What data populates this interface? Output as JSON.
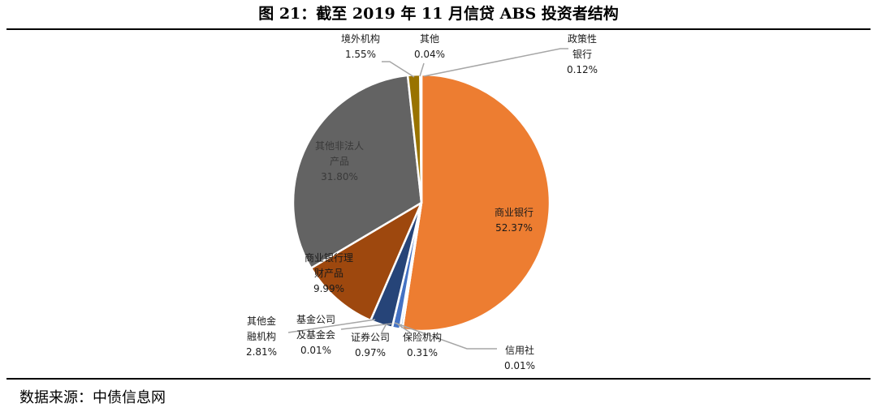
{
  "figure": {
    "title": "图 21：截至 2019 年 11 月信贷 ABS 投资者结构",
    "source": "数据来源：中债信息网"
  },
  "chart_data": {
    "type": "pie",
    "title": "",
    "start_angle_deg": 0,
    "direction": "clockwise",
    "slices": [
      {
        "name": "商业银行",
        "lines": [
          "商业银行"
        ],
        "value": 52.37,
        "value_label": "52.37%",
        "color": "#ED7D31"
      },
      {
        "name": "信用社",
        "lines": [
          "信用社"
        ],
        "value": 0.01,
        "value_label": "0.01%",
        "color": "#FFC000"
      },
      {
        "name": "保险机构",
        "lines": [
          "保险机构"
        ],
        "value": 0.31,
        "value_label": "0.31%",
        "color": "#5B9BD5"
      },
      {
        "name": "证券公司",
        "lines": [
          "证券公司"
        ],
        "value": 0.97,
        "value_label": "0.97%",
        "color": "#4472C4"
      },
      {
        "name": "基金公司及基金会",
        "lines": [
          "基金公司",
          "及基金会"
        ],
        "value": 0.01,
        "value_label": "0.01%",
        "color": "#70AD47"
      },
      {
        "name": "其他金融机构",
        "lines": [
          "其他金",
          "融机构"
        ],
        "value": 2.81,
        "value_label": "2.81%",
        "color": "#264478"
      },
      {
        "name": "商业银行理财产品",
        "lines": [
          "商业银行理",
          "财产品"
        ],
        "value": 9.99,
        "value_label": "9.99%",
        "color": "#9E480E"
      },
      {
        "name": "其他非法人产品",
        "lines": [
          "其他非法人",
          "产品"
        ],
        "value": 31.8,
        "value_label": "31.80%",
        "color": "#636363"
      },
      {
        "name": "境外机构",
        "lines": [
          "境外机构"
        ],
        "value": 1.55,
        "value_label": "1.55%",
        "color": "#997300"
      },
      {
        "name": "其他",
        "lines": [
          "其他"
        ],
        "value": 0.04,
        "value_label": "0.04%",
        "color": "#255E91"
      },
      {
        "name": "政策性银行",
        "lines": [
          "政策性",
          "银行"
        ],
        "value": 0.12,
        "value_label": "0.12%",
        "color": "#43682B"
      }
    ]
  }
}
